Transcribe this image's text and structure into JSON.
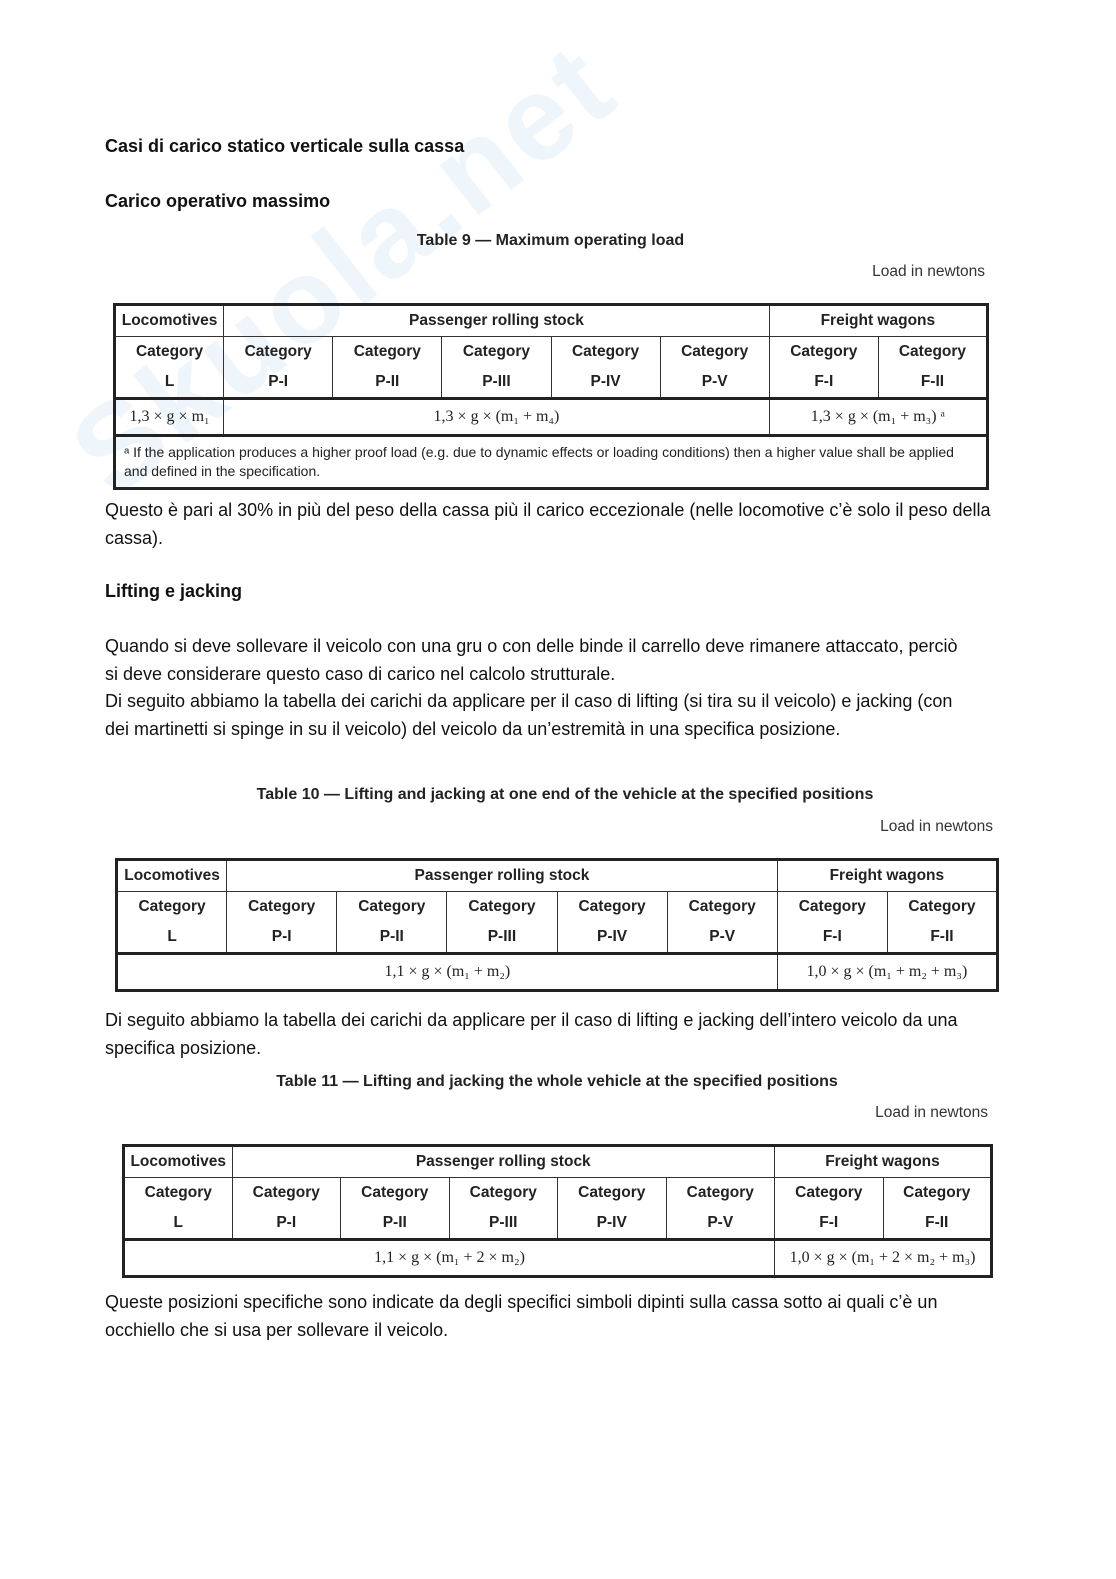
{
  "watermark": "Skuola.net",
  "heading1": "Casi di carico statico verticale sulla cassa",
  "heading2": "Carico operativo massimo",
  "table9": {
    "title": "Table 9 — Maximum operating load",
    "unit": "Load in newtons",
    "groups": [
      "Locomotives",
      "Passenger rolling stock",
      "Freight wagons"
    ],
    "categories": [
      [
        "Category",
        "L"
      ],
      [
        "Category",
        "P-I"
      ],
      [
        "Category",
        "P-II"
      ],
      [
        "Category",
        "P-III"
      ],
      [
        "Category",
        "P-IV"
      ],
      [
        "Category",
        "P-V"
      ],
      [
        "Category",
        "F-I"
      ],
      [
        "Category",
        "F-II"
      ]
    ],
    "formulas": [
      "1,3 × g × m₁",
      "1,3 × g × (m₁ + m₄)",
      "1,3 × g × (m₁ + m₃) ᵃ"
    ],
    "footnote": "ᵃ    If the application produces a higher proof load (e.g. due to dynamic effects or loading conditions) then a higher value shall be applied and defined in the specification."
  },
  "para1": "Questo è pari al 30% in più del peso della cassa più il carico eccezionale (nelle locomotive c’è solo il peso della cassa).",
  "heading3": "Lifting e jacking",
  "para2": "Quando si deve sollevare il veicolo con una gru o con delle binde il carrello deve rimanere attaccato, perciò si deve considerare questo caso di carico nel calcolo strutturale.",
  "para3": "Di seguito abbiamo la tabella dei carichi da applicare per il caso di lifting (si tira su il veicolo) e jacking (con dei martinetti si spinge in su il veicolo) del veicolo da un’estremità in una specifica posizione.",
  "table10": {
    "title": "Table 10 — Lifting and jacking at one end of the vehicle at the specified positions",
    "unit": "Load in newtons",
    "groups": [
      "Locomotives",
      "Passenger rolling stock",
      "Freight wagons"
    ],
    "categories": [
      [
        "Category",
        "L"
      ],
      [
        "Category",
        "P-I"
      ],
      [
        "Category",
        "P-II"
      ],
      [
        "Category",
        "P-III"
      ],
      [
        "Category",
        "P-IV"
      ],
      [
        "Category",
        "P-V"
      ],
      [
        "Category",
        "F-I"
      ],
      [
        "Category",
        "F-II"
      ]
    ],
    "formulas": [
      "1,1 × g × (m₁ + m₂)",
      "1,0 × g × (m₁ + m₂ + m₃)"
    ]
  },
  "para4": "Di seguito abbiamo la tabella dei carichi da applicare per il caso di lifting e jacking dell’intero veicolo da una specifica posizione.",
  "table11": {
    "title": "Table 11 — Lifting and jacking the whole vehicle at the specified positions",
    "unit": "Load in newtons",
    "groups": [
      "Locomotives",
      "Passenger rolling stock",
      "Freight wagons"
    ],
    "categories": [
      [
        "Category",
        "L"
      ],
      [
        "Category",
        "P-I"
      ],
      [
        "Category",
        "P-II"
      ],
      [
        "Category",
        "P-III"
      ],
      [
        "Category",
        "P-IV"
      ],
      [
        "Category",
        "P-V"
      ],
      [
        "Category",
        "F-I"
      ],
      [
        "Category",
        "F-II"
      ]
    ],
    "formulas": [
      "1,1 × g × (m₁ + 2 × m₂)",
      "1,0 × g × (m₁ + 2 × m₂ + m₃)"
    ]
  },
  "para5": "Queste posizioni specifiche sono indicate da degli specifici simboli dipinti sulla cassa sotto ai quali c’è un occhiello che si usa per sollevare il veicolo."
}
